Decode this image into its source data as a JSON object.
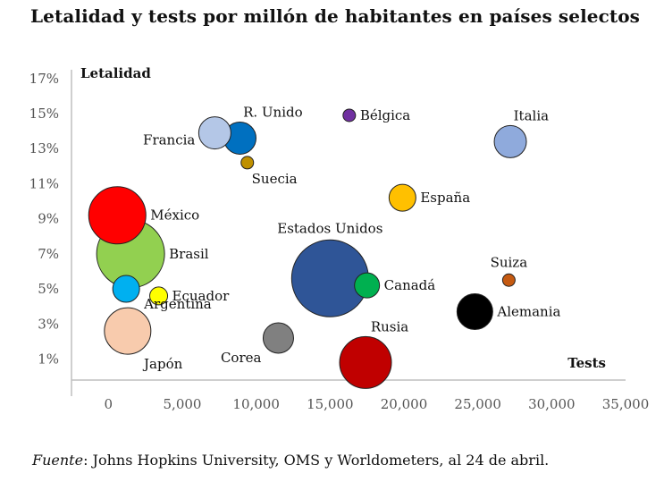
{
  "title": "Letalidad y tests por millón de habitantes en países selectos",
  "source": {
    "label": "Fuente",
    "text": ": Johns Hopkins University, OMS y Worldometers, al 24 de abril."
  },
  "chart_data": {
    "type": "bubble",
    "xlabel": "Tests",
    "ylabel": "Letalidad",
    "xlim": [
      -2500,
      35000
    ],
    "ylim": [
      -0.2,
      17.5
    ],
    "xticks": [
      0,
      5000,
      10000,
      15000,
      20000,
      25000,
      30000,
      35000
    ],
    "xtick_labels": [
      "0",
      "5,000",
      "10,000",
      "15,000",
      "20,000",
      "25,000",
      "30,000",
      "35,000"
    ],
    "yticks": [
      1,
      3,
      5,
      7,
      9,
      11,
      13,
      15,
      17
    ],
    "ytick_labels": [
      "1%",
      "3%",
      "5%",
      "7%",
      "9%",
      "11%",
      "13%",
      "15%",
      "17%"
    ],
    "grid": false,
    "points": [
      {
        "name": "Bélgica",
        "x": 16300,
        "y": 14.9,
        "size": 7,
        "color": "#7030a0",
        "label_pos": "right"
      },
      {
        "name": "R. Unido",
        "x": 8900,
        "y": 13.6,
        "size": 18,
        "color": "#0070c0",
        "label_pos": "top-right"
      },
      {
        "name": "Francia",
        "x": 7200,
        "y": 13.9,
        "size": 18,
        "color": "#b4c7e7",
        "label_pos": "left"
      },
      {
        "name": "Italia",
        "x": 27200,
        "y": 13.4,
        "size": 18,
        "color": "#8faadc",
        "label_pos": "top-right"
      },
      {
        "name": "Suecia",
        "x": 9400,
        "y": 12.2,
        "size": 7,
        "color": "#bf9000",
        "label_pos": "bottom-right"
      },
      {
        "name": "España",
        "x": 19900,
        "y": 10.2,
        "size": 15,
        "color": "#ffc000",
        "label_pos": "right"
      },
      {
        "name": "México",
        "x": 600,
        "y": 9.2,
        "size": 32,
        "color": "#ff0000",
        "label_pos": "right"
      },
      {
        "name": "Brasil",
        "x": 1500,
        "y": 7.0,
        "size": 38,
        "color": "#92d050",
        "label_pos": "right"
      },
      {
        "name": "Estados Unidos",
        "x": 15000,
        "y": 5.6,
        "size": 43,
        "color": "#2f5597",
        "label_pos": "top"
      },
      {
        "name": "Canadá",
        "x": 17500,
        "y": 5.2,
        "size": 14,
        "color": "#00b050",
        "label_pos": "right"
      },
      {
        "name": "Suiza",
        "x": 27100,
        "y": 5.5,
        "size": 7,
        "color": "#c55a11",
        "label_pos": "top"
      },
      {
        "name": "Ecuador",
        "x": 3400,
        "y": 4.6,
        "size": 10,
        "color": "#ffff00",
        "label_pos": "right"
      },
      {
        "name": "Argentina",
        "x": 1200,
        "y": 5.0,
        "size": 15,
        "color": "#00b0f0",
        "label_pos": "right-below"
      },
      {
        "name": "Alemania",
        "x": 24800,
        "y": 3.7,
        "size": 20,
        "color": "#000000",
        "label_pos": "right"
      },
      {
        "name": "Japón",
        "x": 1300,
        "y": 2.6,
        "size": 26,
        "color": "#f8cbad",
        "label_pos": "bottom-right"
      },
      {
        "name": "Corea",
        "x": 11500,
        "y": 2.2,
        "size": 17,
        "color": "#808080",
        "label_pos": "bottom-left"
      },
      {
        "name": "Rusia",
        "x": 17400,
        "y": 0.8,
        "size": 29,
        "color": "#c00000",
        "label_pos": "top-right"
      }
    ]
  }
}
